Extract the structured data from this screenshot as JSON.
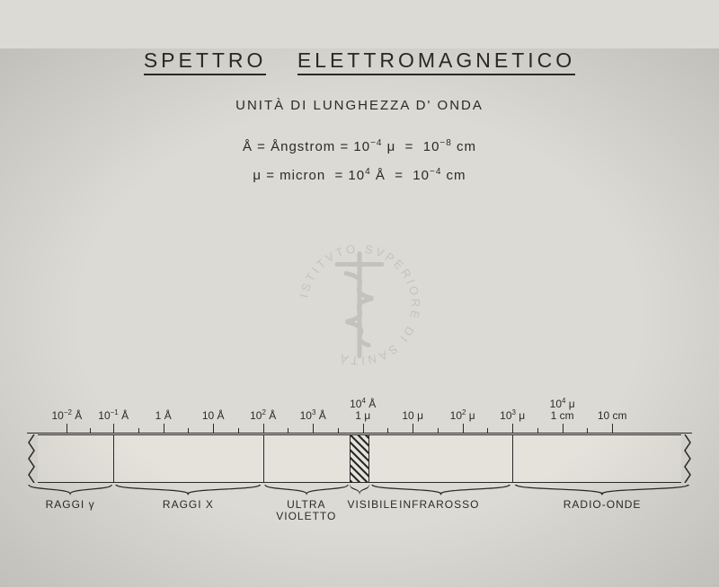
{
  "title_parts": [
    "SPETTRO",
    "ELETTROMAGNETICO"
  ],
  "subtitle": "UNITÀ  DI  LUNGHEZZA  D' ONDA",
  "unit_lines": [
    "Å = Ångstrom = 10<sup>−4</sup> μ &nbsp;=&nbsp; 10<sup>−8</sup> cm",
    "μ = micron &nbsp;= 10<sup>4</sup> Å &nbsp;=&nbsp; 10<sup>−4</sup> cm"
  ],
  "axis": {
    "width_pct": 100,
    "ticks": [
      {
        "pos": 6,
        "label_top": "",
        "label": "10<sup>−2</sup> Å"
      },
      {
        "pos": 13,
        "label_top": "",
        "label": "10<sup>−1</sup> Å"
      },
      {
        "pos": 20.5,
        "label_top": "",
        "label": "1 Å"
      },
      {
        "pos": 28,
        "label_top": "",
        "label": "10 Å"
      },
      {
        "pos": 35.5,
        "label_top": "",
        "label": "10<sup>2</sup> Å"
      },
      {
        "pos": 43,
        "label_top": "",
        "label": "10<sup>3</sup> Å"
      },
      {
        "pos": 50.5,
        "label_top": "10<sup>4</sup> Å",
        "label": "1 μ"
      },
      {
        "pos": 58,
        "label_top": "",
        "label": "10 μ"
      },
      {
        "pos": 65.5,
        "label_top": "",
        "label": "10<sup>2</sup> μ"
      },
      {
        "pos": 73,
        "label_top": "",
        "label": "10<sup>3</sup> μ"
      },
      {
        "pos": 80.5,
        "label_top": "10<sup>4</sup> μ",
        "label": "1 cm"
      },
      {
        "pos": 88,
        "label_top": "",
        "label": "10 cm"
      }
    ],
    "minor_between": 1
  },
  "band": {
    "dividers_pct": [
      13,
      35.5,
      73
    ],
    "visible": {
      "from_pct": 48.5,
      "to_pct": 51.5
    }
  },
  "regions": [
    {
      "from": 0,
      "to": 13,
      "label": "RAGGI γ"
    },
    {
      "from": 13,
      "to": 35.5,
      "label": "RAGGI X"
    },
    {
      "from": 35.5,
      "to": 48.5,
      "label": "ULTRA\nVIOLETTO"
    },
    {
      "from": 48.5,
      "to": 51.5,
      "label": "VISIBILE",
      "label_center": 52
    },
    {
      "from": 51.5,
      "to": 73,
      "label": "INFRAROSSO",
      "label_center": 62
    },
    {
      "from": 73,
      "to": 100,
      "label": "RADIO-ONDE"
    }
  ],
  "colors": {
    "bg": "#dcdad4",
    "ink": "#2a2a2a",
    "band_bg": "#e4e2db"
  }
}
